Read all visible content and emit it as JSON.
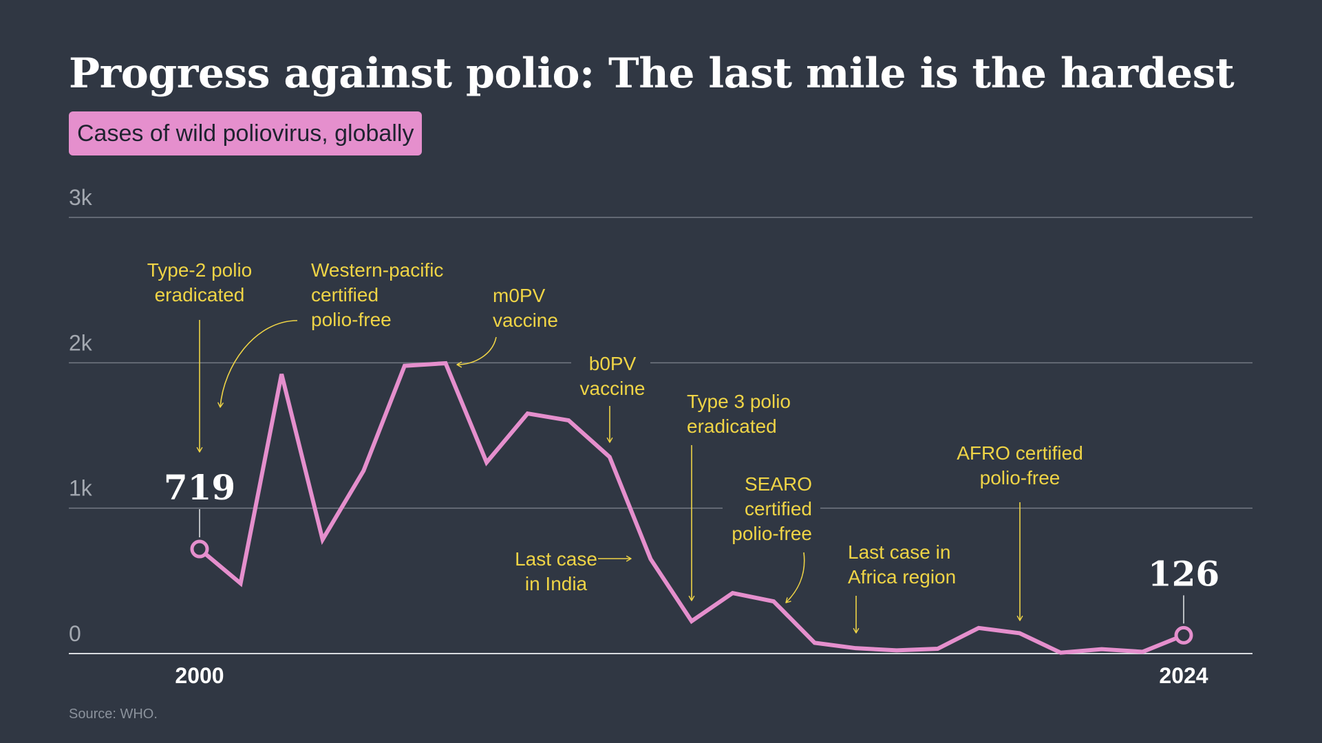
{
  "title": "Progress against polio: The last mile is the hardest",
  "subtitle": "Cases of wild poliovirus, globally",
  "source": "Source: WHO.",
  "colors": {
    "background": "#303743",
    "line": "#e58fcd",
    "annotation": "#efd446",
    "gridline": "#747a84",
    "axis_text": "#a3a8b0",
    "text": "#ffffff"
  },
  "chart_data": {
    "type": "line",
    "title": "Progress against polio: The last mile is the hardest",
    "subtitle": "Cases of wild poliovirus, globally",
    "xlabel": "",
    "ylabel": "",
    "x": [
      2000,
      2001,
      2002,
      2003,
      2004,
      2005,
      2006,
      2007,
      2008,
      2009,
      2010,
      2011,
      2012,
      2013,
      2014,
      2015,
      2016,
      2017,
      2018,
      2019,
      2020,
      2021,
      2022,
      2023,
      2024
    ],
    "series": [
      {
        "values": [
          719,
          483,
          1922,
          784,
          1258,
          1979,
          1997,
          1315,
          1651,
          1604,
          1352,
          650,
          223,
          416,
          359,
          74,
          37,
          22,
          33,
          176,
          140,
          6,
          30,
          12,
          126
        ]
      }
    ],
    "ylim": [
      0,
      3000
    ],
    "yticks": [
      0,
      1000,
      2000,
      3000
    ],
    "ytick_labels": [
      "0",
      "1k",
      "2k",
      "3k"
    ],
    "xtick_labels": [
      {
        "x": 2000,
        "label": "2000"
      },
      {
        "x": 2024,
        "label": "2024"
      }
    ],
    "grid": true,
    "point_labels": [
      {
        "x": 2000,
        "label": "719"
      },
      {
        "x": 2024,
        "label": "126"
      }
    ],
    "annotations": [
      {
        "lines": [
          "Type-2 polio",
          "eradicated"
        ]
      },
      {
        "lines": [
          "Western-pacific",
          "certified",
          "polio-free"
        ]
      },
      {
        "lines": [
          "m0PV",
          "vaccine"
        ]
      },
      {
        "lines": [
          "b0PV",
          "vaccine"
        ]
      },
      {
        "lines": [
          "Type 3 polio",
          "eradicated"
        ]
      },
      {
        "lines": [
          "SEARO",
          "certified",
          "polio-free"
        ]
      },
      {
        "lines": [
          "Last case",
          "in India"
        ]
      },
      {
        "lines": [
          "Last case in",
          "Africa region"
        ]
      },
      {
        "lines": [
          "AFRO certified",
          "polio-free"
        ]
      }
    ]
  }
}
